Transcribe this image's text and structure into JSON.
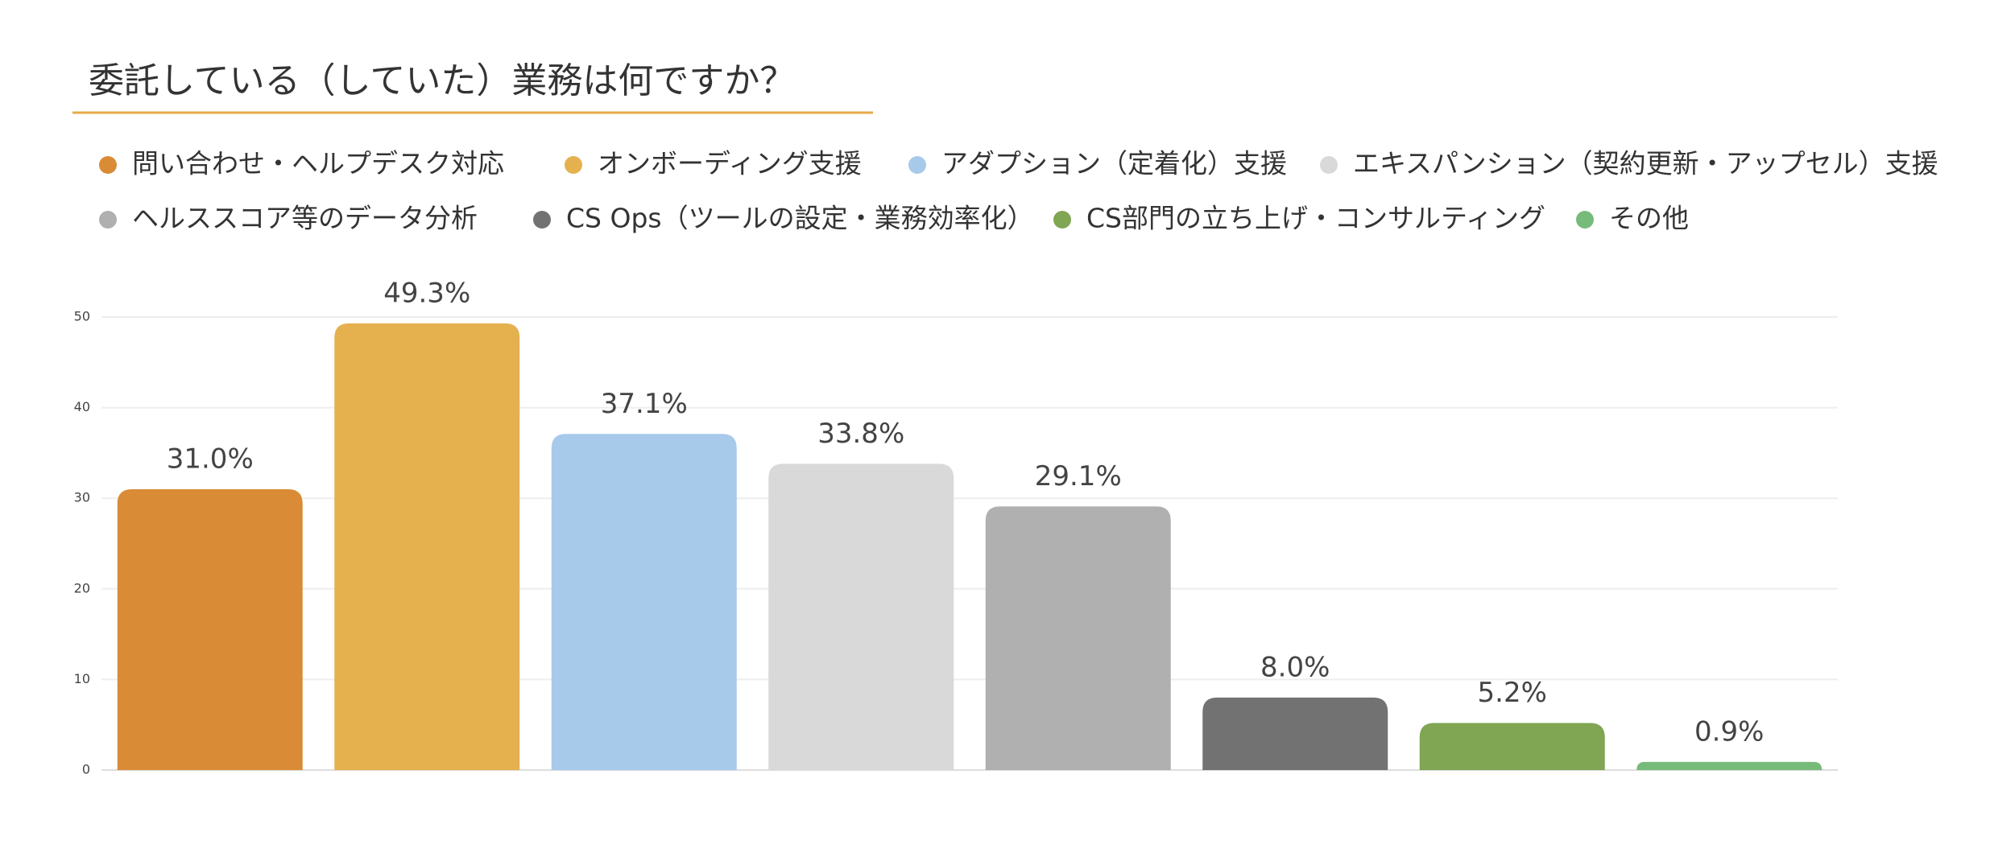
{
  "chart_data": {
    "type": "bar",
    "title": "委託している（していた）業務は何ですか？",
    "categories": [
      "問い合わせ・ヘルプデスク対応",
      "オンボーディング支援",
      "アダプション（定着化）支援",
      "エキスパンション（契約更新・アップセル）支援",
      "ヘルススコア等のデータ分析",
      "CS Ops（ツールの設定・業務効率化）",
      "CS部門の立ち上げ・コンサルティング",
      "その他"
    ],
    "values": [
      31.0,
      49.3,
      37.1,
      33.8,
      29.1,
      8.0,
      5.2,
      0.9
    ],
    "value_labels": [
      "31.0%",
      "49.3%",
      "37.1%",
      "33.8%",
      "29.1%",
      "8.0%",
      "5.2%",
      "0.9%"
    ],
    "colors": [
      "#d98b36",
      "#e5b04e",
      "#a7c9ea",
      "#d9d9d9",
      "#b0b0b0",
      "#717271",
      "#80a553",
      "#77bb7a"
    ],
    "ylim": [
      0,
      50
    ],
    "yticks": [
      0,
      10,
      20,
      30,
      40,
      50
    ],
    "grid": true
  }
}
